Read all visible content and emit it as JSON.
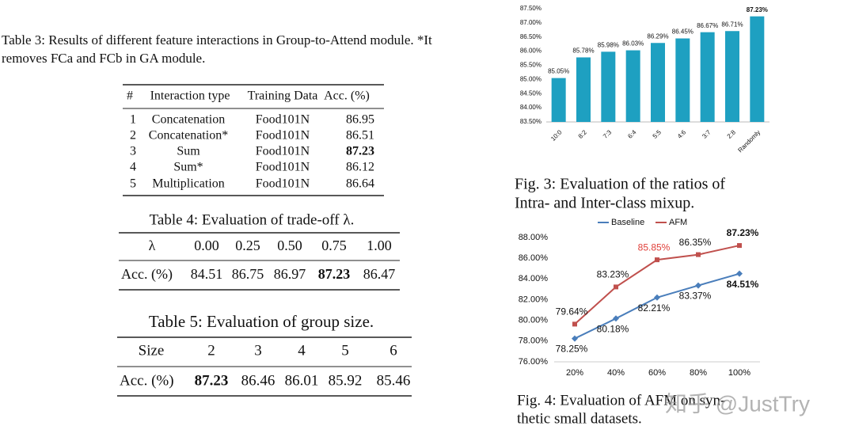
{
  "tables": [
    {
      "caption": [
        "Table 3: Results of different feature interactions in Group-to-Attend module. *It",
        "removes FCa and FCb in GA module."
      ],
      "header": [
        "#",
        "Interaction type",
        "Training Data",
        "Acc. (%)"
      ],
      "rows": [
        [
          "1",
          "Concatenation",
          "Food101N",
          "86.95"
        ],
        [
          "2",
          "Concatenation*",
          "Food101N",
          "86.51"
        ],
        [
          "3",
          "Sum",
          "Food101N",
          "87.23"
        ],
        [
          "4",
          "Sum*",
          "Food101N",
          "86.12"
        ],
        [
          "5",
          "Multiplication",
          "Food101N",
          "86.64"
        ]
      ],
      "bold": [
        2,
        3
      ]
    },
    {
      "caption": [
        "Table 4: Evaluation of trade-off λ."
      ],
      "header": [
        "λ",
        "0.00",
        "0.25",
        "0.50",
        "0.75",
        "1.00"
      ],
      "rows": [
        [
          "Acc. (%)",
          "84.51",
          "86.75",
          "86.97",
          "87.23",
          "86.47"
        ]
      ],
      "bold": [
        0,
        4
      ]
    },
    {
      "caption": [
        "Table 5: Evaluation of group size."
      ],
      "header": [
        "Size",
        "2",
        "3",
        "4",
        "5",
        "6"
      ],
      "rows": [
        [
          "Acc. (%)",
          "87.23",
          "86.46",
          "86.01",
          "85.92",
          "85.46"
        ]
      ],
      "bold": [
        0,
        1
      ]
    }
  ],
  "chart_data": [
    {
      "type": "bar",
      "caption": [
        "Fig. 3: Evaluation of the ratios of",
        "Intra- and Inter-class mixup."
      ],
      "categories": [
        "10:0",
        "8:2",
        "7:3",
        "6:4",
        "5:5",
        "4:6",
        "3:7",
        "2:8",
        "Randomly"
      ],
      "values": [
        85.05,
        85.78,
        85.98,
        86.03,
        86.29,
        86.45,
        86.67,
        86.71,
        87.23
      ],
      "value_labels": [
        "85.05%",
        "85.78%",
        "85.98%",
        "86.03%",
        "86.29%",
        "86.45%",
        "86.67%",
        "86.71%",
        "87.23%"
      ],
      "color": "#1ea0c1",
      "ylim": [
        83.5,
        87.5
      ],
      "yticks": [
        {
          "value": 83.5,
          "label": "83.50%"
        },
        {
          "value": 84,
          "label": "84.00%"
        },
        {
          "value": 84.5,
          "label": "84.50%"
        },
        {
          "value": 85,
          "label": "85.00%"
        },
        {
          "value": 85.5,
          "label": "85.50%"
        },
        {
          "value": 86,
          "label": "86.00%"
        },
        {
          "value": 86.5,
          "label": "86.50%"
        },
        {
          "value": 87,
          "label": "87.00%"
        },
        {
          "value": 87.5,
          "label": "87.50%"
        }
      ]
    },
    {
      "type": "line",
      "caption": [
        "Fig. 4: Evaluation of AFM on syn-",
        "thetic small datasets."
      ],
      "categories": [
        "20%",
        "40%",
        "60%",
        "80%",
        "100%"
      ],
      "series": [
        {
          "name": "Baseline",
          "color": "#4a7ebb",
          "values": [
            78.25,
            80.18,
            82.21,
            83.37,
            84.51
          ],
          "value_labels": [
            "78.25%",
            "80.18%",
            "82.21%",
            "83.37%",
            "84.51%"
          ]
        },
        {
          "name": "AFM",
          "color": "#c0504d",
          "values": [
            79.64,
            83.23,
            85.85,
            86.35,
            87.23
          ],
          "value_labels": [
            "79.64%",
            "83.23%",
            "85.85%",
            "86.35%",
            "87.23%"
          ]
        }
      ],
      "ylim": [
        76,
        88
      ],
      "yticks": [
        {
          "value": 76,
          "label": "76.00%"
        },
        {
          "value": 78,
          "label": "78.00%"
        },
        {
          "value": 80,
          "label": "80.00%"
        },
        {
          "value": 82,
          "label": "82.00%"
        },
        {
          "value": 84,
          "label": "84.00%"
        },
        {
          "value": 86,
          "label": "86.00%"
        },
        {
          "value": 88,
          "label": "88.00%"
        }
      ],
      "legend": "top"
    }
  ],
  "watermark": "知乎 @JustTry"
}
